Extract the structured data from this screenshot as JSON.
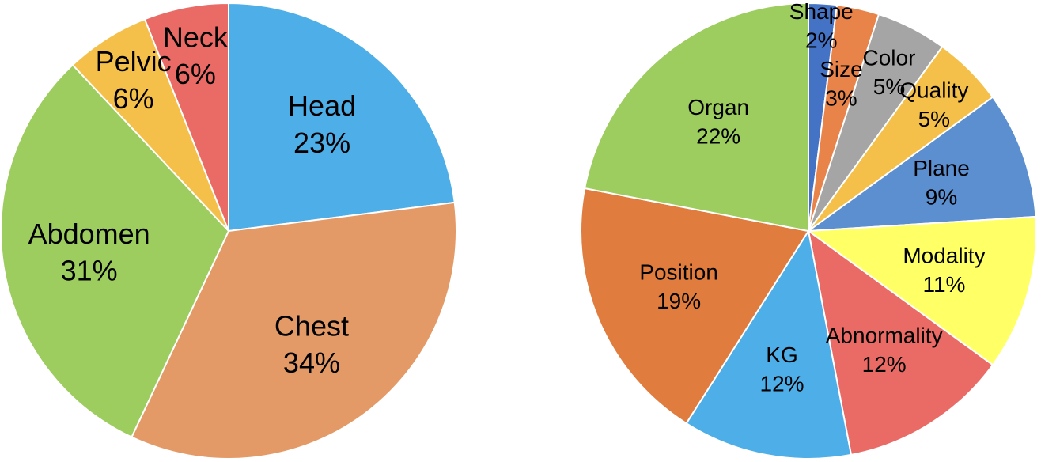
{
  "chart_data": [
    {
      "type": "pie",
      "categories": [
        "Head",
        "Chest",
        "Abdomen",
        "Pelvic",
        "Neck"
      ],
      "values": [
        23,
        34,
        31,
        6,
        6
      ],
      "value_labels": [
        "23%",
        "34%",
        "31%",
        "6%",
        "6%"
      ],
      "colors": [
        "#4eaee8",
        "#e49a66",
        "#9dcc5f",
        "#f4c04a",
        "#ea6b66"
      ]
    },
    {
      "type": "pie",
      "categories": [
        "Shape",
        "Size",
        "Color",
        "Quality",
        "Plane",
        "Modality",
        "Abnormality",
        "KG",
        "Position",
        "Organ"
      ],
      "values": [
        2,
        3,
        5,
        5,
        9,
        11,
        12,
        12,
        19,
        22
      ],
      "value_labels": [
        "2%",
        "3%",
        "5%",
        "5%",
        "9%",
        "11%",
        "12%",
        "12%",
        "19%",
        "22%"
      ],
      "colors": [
        "#4472c4",
        "#e8834a",
        "#a5a5a5",
        "#f4c04a",
        "#5b8fd0",
        "#ffff66",
        "#ea6b66",
        "#4eaee8",
        "#e07c3e",
        "#9dcc5f"
      ]
    }
  ]
}
